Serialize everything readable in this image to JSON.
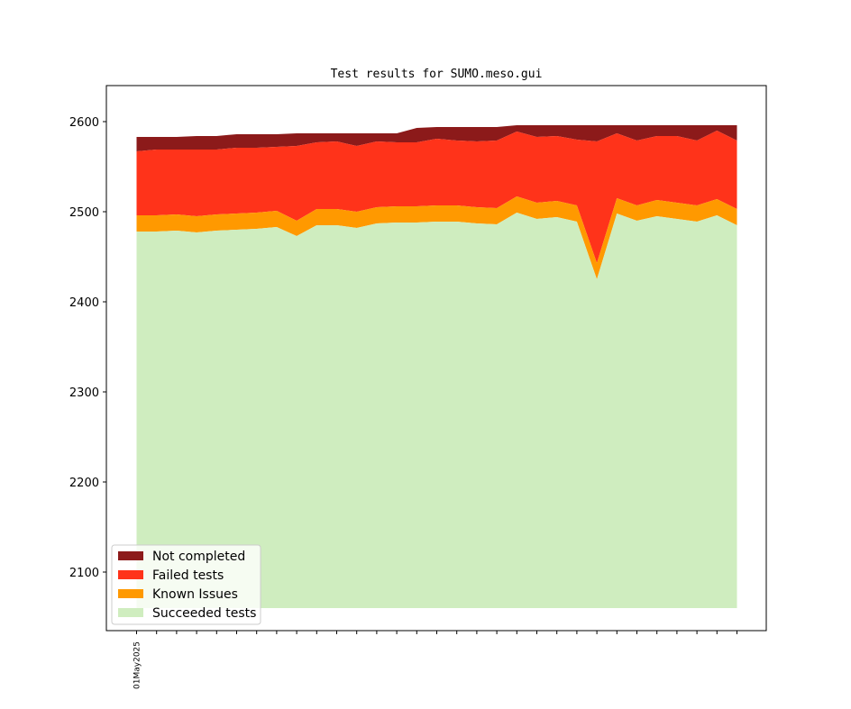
{
  "chart_data": {
    "type": "area",
    "stacked": true,
    "title": "Test results for SUMO.meso.gui",
    "xlabel": "",
    "ylabel": "",
    "ylim": [
      2035,
      2640
    ],
    "y_ticks": [
      2100,
      2200,
      2300,
      2400,
      2500,
      2600
    ],
    "x_tick_labels": [
      {
        "index": 0,
        "label": "01May2025"
      }
    ],
    "baseline": 2060,
    "legend_position": "lower-left",
    "grid": false,
    "series": [
      {
        "name": "Succeeded tests",
        "color": "#cfedbf",
        "values": [
          2478,
          2478,
          2479,
          2477,
          2479,
          2480,
          2481,
          2483,
          2473,
          2485,
          2485,
          2482,
          2487,
          2488,
          2488,
          2489,
          2489,
          2487,
          2486,
          2499,
          2492,
          2494,
          2489,
          2425,
          2498,
          2490,
          2495,
          2492,
          2489,
          2496,
          2485
        ]
      },
      {
        "name": "Known Issues",
        "color": "#ff9900",
        "values": [
          2496,
          2496,
          2497,
          2495,
          2497,
          2498,
          2499,
          2501,
          2490,
          2503,
          2503,
          2500,
          2505,
          2506,
          2506,
          2507,
          2507,
          2505,
          2504,
          2517,
          2510,
          2512,
          2507,
          2443,
          2515,
          2507,
          2513,
          2510,
          2507,
          2514,
          2503
        ]
      },
      {
        "name": "Failed tests",
        "color": "#ff331a",
        "values": [
          2567,
          2569,
          2569,
          2569,
          2569,
          2571,
          2571,
          2572,
          2573,
          2577,
          2578,
          2573,
          2578,
          2577,
          2577,
          2581,
          2579,
          2578,
          2579,
          2589,
          2583,
          2584,
          2580,
          2578,
          2587,
          2579,
          2584,
          2584,
          2579,
          2590,
          2579
        ]
      },
      {
        "name": "Not completed",
        "color": "#8c1a1a",
        "values": [
          2583,
          2583,
          2583,
          2584,
          2584,
          2586,
          2586,
          2586,
          2587,
          2587,
          2587,
          2587,
          2587,
          2587,
          2593,
          2594,
          2594,
          2594,
          2594,
          2596,
          2596,
          2596,
          2596,
          2596,
          2596,
          2596,
          2596,
          2596,
          2596,
          2596,
          2596
        ]
      }
    ],
    "legend_order": [
      "Not completed",
      "Failed tests",
      "Known Issues",
      "Succeeded tests"
    ]
  }
}
